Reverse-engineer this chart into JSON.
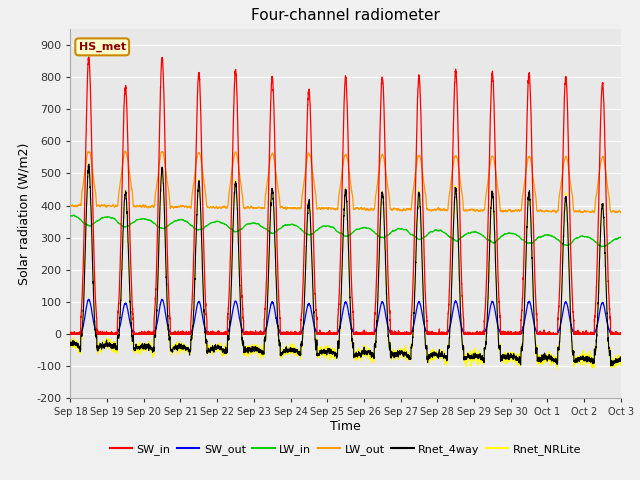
{
  "title": "Four-channel radiometer",
  "xlabel": "Time",
  "ylabel": "Solar radiation (W/m2)",
  "ylim": [
    -200,
    950
  ],
  "yticks": [
    -200,
    -100,
    0,
    100,
    200,
    300,
    400,
    500,
    600,
    700,
    800,
    900
  ],
  "fig_bg_color": "#f0f0f0",
  "plot_bg_color": "#e8e8e8",
  "station_label": "HS_met",
  "xtick_labels": [
    "Sep 18",
    "Sep 19",
    "Sep 20",
    "Sep 21",
    "Sep 22",
    "Sep 23",
    "Sep 24",
    "Sep 25",
    "Sep 26",
    "Sep 27",
    "Sep 28",
    "Sep 29",
    "Sep 30",
    "Oct 1",
    "Oct 2",
    "Oct 3"
  ],
  "legend_entries": [
    {
      "label": "SW_in",
      "color": "#ff0000"
    },
    {
      "label": "SW_out",
      "color": "#0000ff"
    },
    {
      "label": "LW_in",
      "color": "#00cc00"
    },
    {
      "label": "LW_out",
      "color": "#ff9900"
    },
    {
      "label": "Rnet_4way",
      "color": "#000000"
    },
    {
      "label": "Rnet_NRLite",
      "color": "#ffff00"
    }
  ],
  "sw_in_peaks": [
    860,
    770,
    860,
    810,
    820,
    800,
    760,
    800,
    800,
    800,
    820,
    810,
    810,
    800,
    780
  ],
  "num_days": 15,
  "n_points_per_day": 288,
  "seed": 42
}
